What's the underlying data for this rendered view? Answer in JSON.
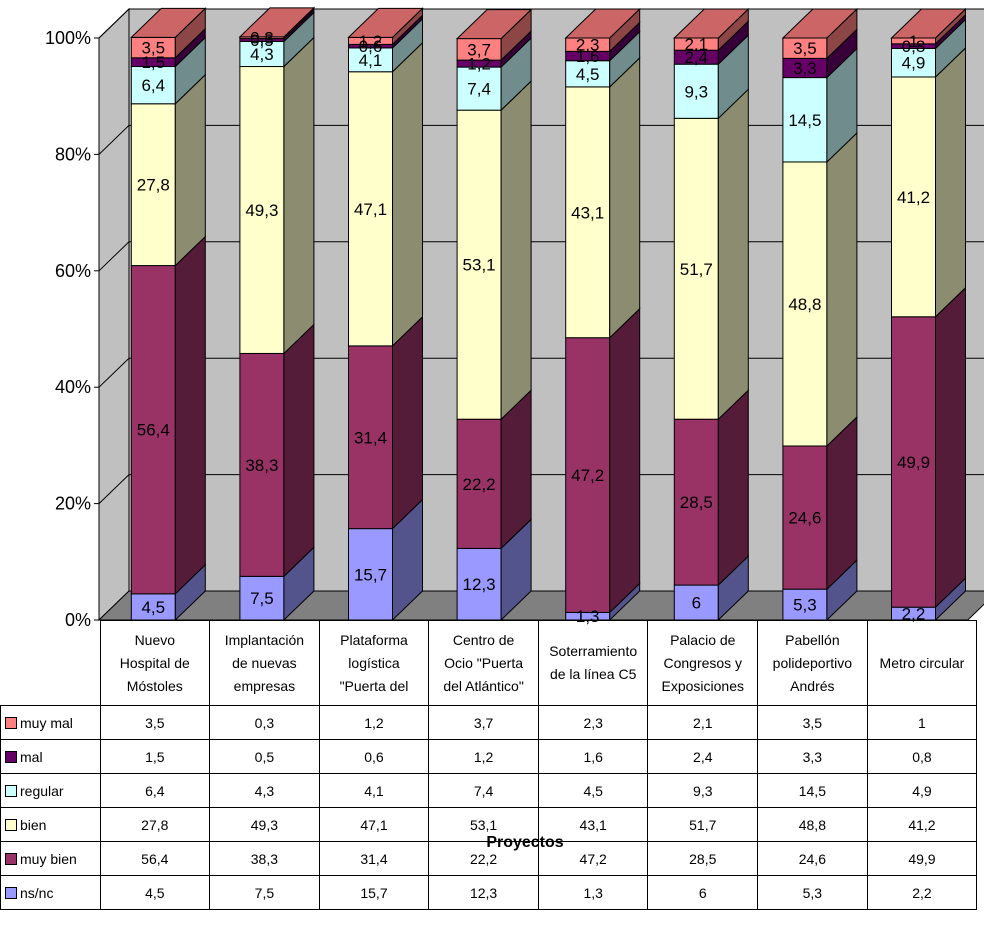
{
  "chart_data": {
    "type": "bar",
    "stacked": true,
    "percent_stacked": true,
    "three_d": true,
    "title": "",
    "xlabel": "Proyectos",
    "ylabel": "",
    "ylim": [
      0,
      100
    ],
    "yticks": [
      "0%",
      "20%",
      "40%",
      "60%",
      "80%",
      "100%"
    ],
    "grid": true,
    "legend": "table-left",
    "categories": [
      [
        "Nuevo",
        "Hospital de",
        "Móstoles"
      ],
      [
        "Implantación",
        "de nuevas",
        "empresas"
      ],
      [
        "Plataforma",
        "logística",
        "\"Puerta del"
      ],
      [
        "Centro de",
        "Ocio \"Puerta",
        "del Atlántico\""
      ],
      [
        "Soterramiento",
        "de la línea C5"
      ],
      [
        "Palacio de",
        "Congresos y",
        "Exposiciones"
      ],
      [
        "Pabellón",
        "polideportivo",
        "Andrés"
      ],
      [
        "Metro circular"
      ]
    ],
    "series": [
      {
        "name": "ns/nc",
        "color": "#9999ff",
        "values": [
          4.5,
          7.5,
          15.7,
          12.3,
          1.3,
          6,
          5.3,
          2.2
        ]
      },
      {
        "name": "muy bien",
        "color": "#993366",
        "values": [
          56.4,
          38.3,
          31.4,
          22.2,
          47.2,
          28.5,
          24.6,
          49.9
        ]
      },
      {
        "name": "bien",
        "color": "#ffffcc",
        "values": [
          27.8,
          49.3,
          47.1,
          53.1,
          43.1,
          51.7,
          48.8,
          41.2
        ]
      },
      {
        "name": "regular",
        "color": "#ccffff",
        "values": [
          6.4,
          4.3,
          4.1,
          7.4,
          4.5,
          9.3,
          14.5,
          4.9
        ]
      },
      {
        "name": "mal",
        "color": "#660066",
        "values": [
          1.5,
          0.5,
          0.6,
          1.2,
          1.6,
          2.4,
          3.3,
          0.8
        ]
      },
      {
        "name": "muy mal",
        "color": "#ff8080",
        "values": [
          3.5,
          0.3,
          1.2,
          3.7,
          2.3,
          2.1,
          3.5,
          1
        ]
      }
    ],
    "table_order": [
      "muy mal",
      "mal",
      "regular",
      "bien",
      "muy bien",
      "ns/nc"
    ],
    "colors": {
      "back_wall": "#c0c0c0",
      "floor": "#808080",
      "gridline": "#000000"
    }
  }
}
